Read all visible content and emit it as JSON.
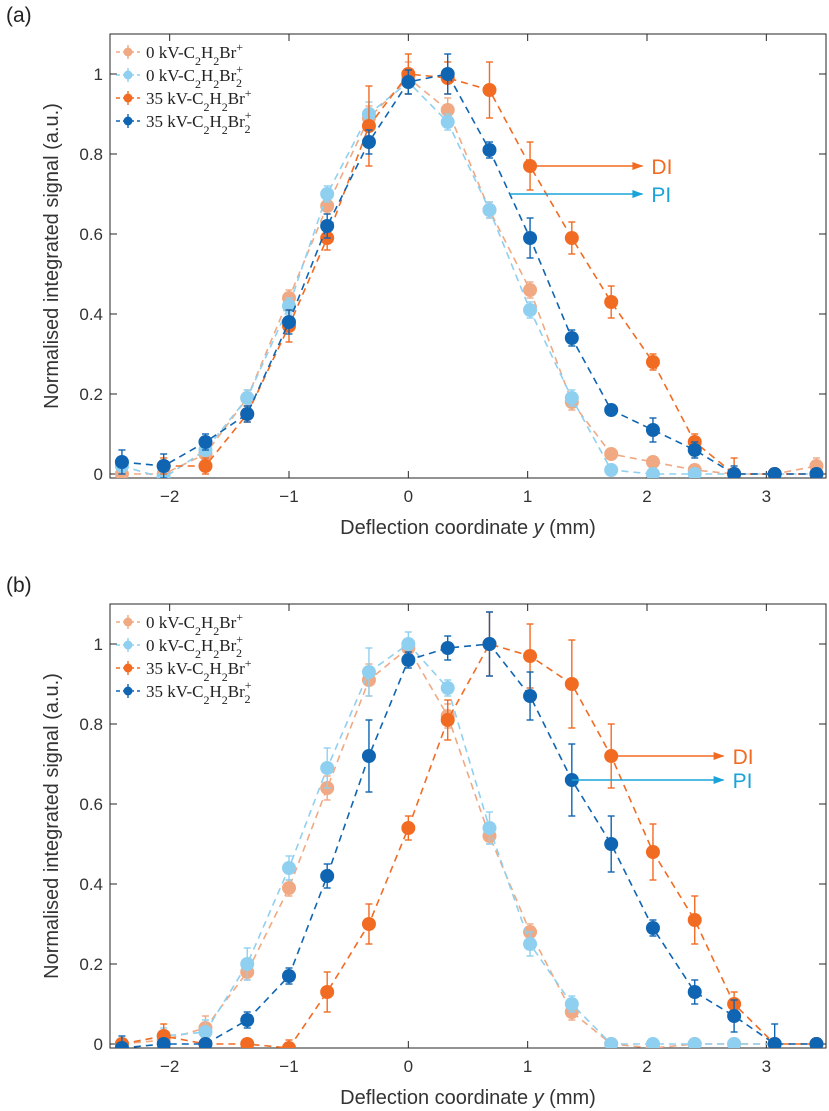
{
  "figure": {
    "panel_labels": [
      "(a)",
      "(b)"
    ]
  },
  "chart_data": [
    {
      "type": "line",
      "panel": "(a)",
      "xlabel": "Deflection coordinate y (mm)",
      "xlabel_main": "Deflection coordinate ",
      "xlabel_var": "y",
      "xlabel_unit": " (mm)",
      "ylabel": "Normalised integrated signal (a.u.)",
      "xlim": [
        -2.5,
        3.5
      ],
      "ylim": [
        -0.01,
        1.1
      ],
      "xticks": [
        -2,
        -1,
        0,
        1,
        2,
        3
      ],
      "yticks": [
        0,
        0.2,
        0.4,
        0.6,
        0.8,
        1
      ],
      "legend_position": "top-left",
      "x": [
        -2.4,
        -2.05,
        -1.7,
        -1.35,
        -1.0,
        -0.68,
        -0.33,
        0.0,
        0.33,
        0.68,
        1.02,
        1.37,
        1.7,
        2.05,
        2.4,
        2.73,
        3.07,
        3.42
      ],
      "series": [
        {
          "name": "0 kV-C2H2Br+",
          "label_base": "0 kV-C",
          "sub1": "2",
          "mid": "H",
          "sub2": "2",
          "tail": "Br",
          "sup": "+",
          "sub3": "",
          "color": "#f0a982",
          "values": [
            0.0,
            0.0,
            0.05,
            0.19,
            0.44,
            0.67,
            0.89,
            0.99,
            0.91,
            0.66,
            0.46,
            0.18,
            0.05,
            0.03,
            0.01,
            0.0,
            0.0,
            0.02
          ],
          "errors": [
            0.01,
            0.01,
            0.02,
            0.02,
            0.02,
            0.02,
            0.03,
            0.04,
            0.03,
            0.02,
            0.02,
            0.02,
            0.01,
            0.01,
            0.01,
            0.01,
            0.01,
            0.02
          ]
        },
        {
          "name": "0 kV-C2H2Br2+",
          "label_base": "0 kV-C",
          "sub1": "2",
          "mid": "H",
          "sub2": "2",
          "tail": "Br",
          "sup": "+",
          "sub3": "2",
          "color": "#8fd0f0",
          "values": [
            0.02,
            -0.01,
            0.06,
            0.19,
            0.42,
            0.7,
            0.9,
            0.98,
            0.88,
            0.66,
            0.41,
            0.19,
            0.01,
            0.0,
            0.0,
            0.0,
            0.0,
            0.0
          ],
          "errors": [
            0.01,
            0.01,
            0.02,
            0.02,
            0.02,
            0.02,
            0.03,
            0.03,
            0.02,
            0.02,
            0.02,
            0.02,
            0.01,
            0.01,
            0.01,
            0.01,
            0.01,
            0.01
          ]
        },
        {
          "name": "35 kV-C2H2Br+",
          "label_base": "35 kV-C",
          "sub1": "2",
          "mid": "H",
          "sub2": "2",
          "tail": "Br",
          "sup": "+",
          "sub3": "",
          "color": "#f26b22",
          "values": [
            null,
            0.02,
            0.02,
            0.15,
            0.37,
            0.59,
            0.87,
            1.0,
            0.99,
            0.96,
            0.77,
            0.59,
            0.43,
            0.28,
            0.08,
            0.0,
            0.0,
            0.0
          ],
          "errors": [
            null,
            0.02,
            0.02,
            0.02,
            0.04,
            0.03,
            0.1,
            0.05,
            0.04,
            0.07,
            0.06,
            0.04,
            0.04,
            0.02,
            0.02,
            0.04,
            0.01,
            0.01
          ],
          "marker_size": 6.5
        },
        {
          "name": "35 kV-C2H2Br2+",
          "label_base": "35 kV-C",
          "sub1": "2",
          "mid": "H",
          "sub2": "2",
          "tail": "Br",
          "sup": "+",
          "sub3": "2",
          "color": "#0f65b2",
          "values": [
            0.03,
            0.02,
            0.08,
            0.15,
            0.38,
            0.62,
            0.83,
            0.98,
            1.0,
            0.81,
            0.59,
            0.34,
            0.16,
            0.11,
            0.06,
            0.0,
            0.0,
            0.0
          ],
          "errors": [
            0.03,
            0.03,
            0.02,
            0.02,
            0.03,
            0.03,
            0.03,
            0.03,
            0.05,
            0.02,
            0.05,
            0.02,
            0.01,
            0.03,
            0.02,
            0.02,
            0.01,
            0.01
          ]
        }
      ],
      "annotations": [
        {
          "text": "DI",
          "color": "#f26b22",
          "from": [
            1.02,
            0.77
          ],
          "to": [
            1.97,
            0.77
          ]
        },
        {
          "text": "PI",
          "color": "#1aa3d9",
          "from": [
            0.85,
            0.7
          ],
          "to": [
            1.97,
            0.7
          ]
        }
      ]
    },
    {
      "type": "line",
      "panel": "(b)",
      "xlabel": "Deflection coordinate y (mm)",
      "xlabel_main": "Deflection coordinate ",
      "xlabel_var": "y",
      "xlabel_unit": " (mm)",
      "ylabel": "Normalised integrated signal (a.u.)",
      "xlim": [
        -2.5,
        3.5
      ],
      "ylim": [
        -0.01,
        1.1
      ],
      "xticks": [
        -2,
        -1,
        0,
        1,
        2,
        3
      ],
      "yticks": [
        0,
        0.2,
        0.4,
        0.6,
        0.8,
        1
      ],
      "legend_position": "top-left",
      "x": [
        -2.4,
        -2.05,
        -1.7,
        -1.35,
        -1.0,
        -0.68,
        -0.33,
        0.0,
        0.33,
        0.68,
        1.02,
        1.37,
        1.7,
        2.05,
        2.4,
        2.73,
        3.07,
        3.42
      ],
      "series": [
        {
          "name": "0 kV-C2H2Br+",
          "label_base": "0 kV-C",
          "sub1": "2",
          "mid": "H",
          "sub2": "2",
          "tail": "Br",
          "sup": "+",
          "sub3": "",
          "color": "#f0a982",
          "values": [
            0.0,
            0.01,
            0.04,
            0.18,
            0.39,
            0.64,
            0.91,
            0.99,
            0.82,
            0.52,
            0.28,
            0.08,
            0.0,
            -0.01,
            0.0,
            0.0,
            0.0,
            0.0
          ],
          "errors": [
            0.01,
            0.02,
            0.03,
            0.02,
            0.02,
            0.03,
            0.04,
            0.02,
            0.03,
            0.02,
            0.02,
            0.02,
            0.01,
            0.01,
            0.01,
            0.01,
            0.01,
            0.01
          ]
        },
        {
          "name": "0 kV-C2H2Br2+",
          "label_base": "0 kV-C",
          "sub1": "2",
          "mid": "H",
          "sub2": "2",
          "tail": "Br",
          "sup": "+",
          "sub3": "2",
          "color": "#8fd0f0",
          "values": [
            0.0,
            0.02,
            0.03,
            0.2,
            0.44,
            0.69,
            0.93,
            1.0,
            0.89,
            0.54,
            0.25,
            0.1,
            0.0,
            0.0,
            0.0,
            0.0,
            0.0,
            0.0
          ],
          "errors": [
            0.01,
            0.02,
            0.03,
            0.04,
            0.03,
            0.05,
            0.06,
            0.03,
            0.02,
            0.04,
            0.03,
            0.02,
            0.01,
            0.01,
            0.01,
            0.01,
            0.01,
            0.01
          ]
        },
        {
          "name": "35 kV-C2H2Br+",
          "label_base": "35 kV-C",
          "sub1": "2",
          "mid": "H",
          "sub2": "2",
          "tail": "Br",
          "sup": "+",
          "sub3": "",
          "color": "#f26b22",
          "values": [
            0.0,
            0.02,
            0.0,
            0.0,
            -0.01,
            0.13,
            0.3,
            0.54,
            0.81,
            1.0,
            0.97,
            0.9,
            0.72,
            0.48,
            0.31,
            0.1,
            0.0,
            0.0
          ],
          "errors": [
            0.01,
            0.03,
            0.01,
            0.01,
            0.02,
            0.05,
            0.05,
            0.03,
            0.05,
            0.08,
            0.08,
            0.11,
            0.08,
            0.07,
            0.06,
            0.03,
            0.01,
            0.01
          ]
        },
        {
          "name": "35 kV-C2H2Br2+",
          "label_base": "35 kV-C",
          "sub1": "2",
          "mid": "H",
          "sub2": "2",
          "tail": "Br",
          "sup": "+",
          "sub3": "2",
          "color": "#0f65b2",
          "values": [
            -0.01,
            0.0,
            0.0,
            0.06,
            0.17,
            0.42,
            0.72,
            0.96,
            0.99,
            1.0,
            0.87,
            0.66,
            0.5,
            0.29,
            0.13,
            0.07,
            0.0,
            0.0
          ],
          "errors": [
            0.03,
            0.01,
            0.01,
            0.02,
            0.02,
            0.03,
            0.09,
            0.02,
            0.03,
            0.08,
            0.06,
            0.09,
            0.07,
            0.02,
            0.03,
            0.04,
            0.05,
            0.01
          ]
        }
      ],
      "annotations": [
        {
          "text": "DI",
          "color": "#f26b22",
          "from": [
            1.7,
            0.72
          ],
          "to": [
            2.65,
            0.72
          ]
        },
        {
          "text": "PI",
          "color": "#1aa3d9",
          "from": [
            1.37,
            0.66
          ],
          "to": [
            2.65,
            0.66
          ]
        }
      ]
    }
  ]
}
